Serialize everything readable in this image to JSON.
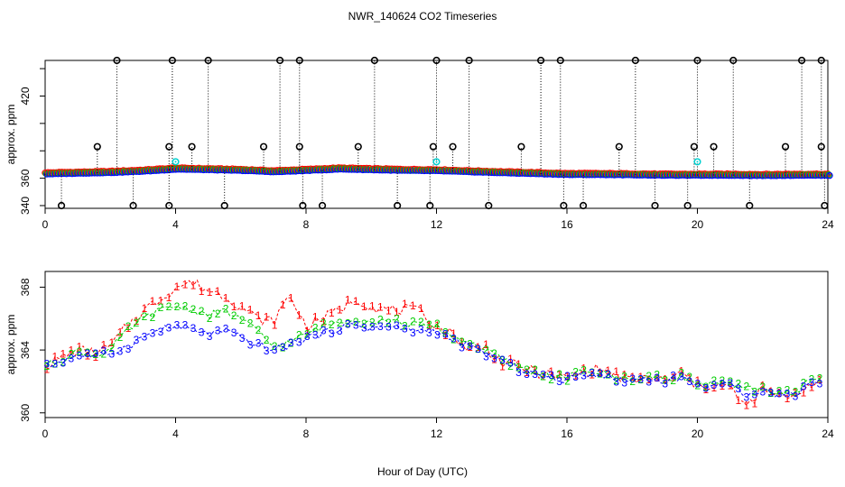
{
  "title": "NWR_140624  CO2 Timeseries",
  "xlabel": "Hour of Day (UTC)",
  "colors": {
    "series1": "#ff0000",
    "series2": "#00cc00",
    "series3": "#0000ff",
    "flagged": "#00d0d0",
    "outlier": "#000000"
  },
  "chart_data": [
    {
      "type": "scatter",
      "name": "overview",
      "ylabel": "approx. ppm",
      "xlim": [
        0,
        24
      ],
      "ylim": [
        338,
        446
      ],
      "xticks": [
        0,
        4,
        8,
        12,
        16,
        20,
        24
      ],
      "yticks": [
        340,
        360,
        420
      ],
      "yticks_minor": [
        380,
        400,
        440
      ],
      "baseline": {
        "x": [
          0,
          1,
          2,
          3,
          4,
          5,
          6,
          7,
          8,
          9,
          10,
          11,
          12,
          13,
          14,
          15,
          16,
          17,
          18,
          19,
          20,
          21,
          22,
          23,
          24
        ],
        "y": [
          363.0,
          363.5,
          364.0,
          365.0,
          366.5,
          366.0,
          365.5,
          364.5,
          365.5,
          366.5,
          366.0,
          365.5,
          365.3,
          364.5,
          363.8,
          363.2,
          362.5,
          362.5,
          362.3,
          362.0,
          362.0,
          362.0,
          361.8,
          362.0,
          362.0
        ]
      },
      "spikes_high": {
        "x": [
          2.2,
          3.9,
          5.0,
          7.2,
          7.8,
          10.1,
          12.0,
          13.0,
          15.2,
          15.8,
          18.1,
          20.0,
          21.1,
          23.2,
          23.8
        ],
        "y": [
          446,
          446,
          446,
          446,
          446,
          446,
          446,
          446,
          446,
          446,
          446,
          446,
          446,
          446,
          446
        ]
      },
      "spikes_mid": {
        "x": [
          1.6,
          3.8,
          4.5,
          6.7,
          7.8,
          9.6,
          11.9,
          12.5,
          14.6,
          17.6,
          19.9,
          20.5,
          22.7,
          23.8
        ],
        "y": [
          383,
          383,
          383,
          383,
          383,
          383,
          383,
          383,
          383,
          383,
          383,
          383,
          383,
          383
        ]
      },
      "spikes_low": {
        "x": [
          0.5,
          2.7,
          3.8,
          5.5,
          7.9,
          8.5,
          10.8,
          11.8,
          13.6,
          15.9,
          16.5,
          18.7,
          19.7,
          21.6,
          23.9
        ],
        "y": [
          340,
          340,
          340,
          340,
          340,
          340,
          340,
          340,
          340,
          340,
          340,
          340,
          340,
          340,
          340
        ]
      },
      "flagged_points": {
        "x": [
          4.0,
          12.0,
          20.0
        ],
        "y": [
          372,
          372,
          372
        ]
      }
    },
    {
      "type": "scatter",
      "name": "detail",
      "ylabel": "approx. ppm",
      "xlim": [
        0,
        24
      ],
      "ylim": [
        359.7,
        369.0
      ],
      "xticks": [
        0,
        4,
        8,
        12,
        16,
        20,
        24
      ],
      "yticks": [
        360,
        364,
        368
      ],
      "series": [
        {
          "name": "1",
          "marker": "1",
          "x": [
            0.0,
            0.5,
            1.0,
            1.5,
            2.0,
            2.5,
            3.0,
            3.5,
            4.0,
            4.5,
            5.0,
            5.5,
            6.0,
            6.5,
            7.0,
            7.5,
            8.0,
            8.5,
            9.0,
            9.5,
            10.0,
            10.5,
            11.0,
            11.5,
            12.0,
            12.5,
            13.0,
            13.5,
            14.0,
            14.5,
            15.0,
            15.5,
            16.0,
            16.5,
            17.0,
            17.5,
            18.0,
            18.5,
            19.0,
            19.5,
            20.0,
            20.5,
            21.0,
            21.5,
            22.0,
            22.5,
            23.0,
            23.5
          ],
          "y": [
            363.0,
            363.5,
            364.0,
            363.8,
            364.2,
            365.5,
            366.5,
            367.2,
            368.0,
            368.3,
            367.8,
            367.5,
            366.8,
            366.0,
            365.8,
            367.5,
            365.5,
            366.0,
            366.5,
            367.3,
            366.8,
            366.5,
            366.6,
            366.4,
            365.5,
            365.0,
            364.0,
            364.2,
            363.2,
            363.0,
            362.6,
            362.4,
            362.2,
            362.6,
            362.8,
            362.4,
            362.0,
            362.3,
            362.0,
            362.5,
            361.7,
            361.8,
            361.6,
            360.3,
            361.5,
            361.0,
            361.2,
            361.9
          ]
        },
        {
          "name": "2",
          "marker": "2",
          "x": [
            0.0,
            0.5,
            1.0,
            1.5,
            2.0,
            2.5,
            3.0,
            3.5,
            4.0,
            4.5,
            5.0,
            5.5,
            6.0,
            6.5,
            7.0,
            7.5,
            8.0,
            8.5,
            9.0,
            9.5,
            10.0,
            10.5,
            11.0,
            11.5,
            12.0,
            12.5,
            13.0,
            13.5,
            14.0,
            14.5,
            15.0,
            15.5,
            16.0,
            16.5,
            17.0,
            17.5,
            18.0,
            18.5,
            19.0,
            19.5,
            20.0,
            20.5,
            21.0,
            21.5,
            22.0,
            22.5,
            23.0,
            23.5
          ],
          "y": [
            363.0,
            363.4,
            363.9,
            363.7,
            364.0,
            365.2,
            366.0,
            366.5,
            366.8,
            366.6,
            366.2,
            366.5,
            366.0,
            365.2,
            364.2,
            364.5,
            365.0,
            365.5,
            365.8,
            366.0,
            365.8,
            365.9,
            365.7,
            365.6,
            365.5,
            364.8,
            364.5,
            364.0,
            363.4,
            362.9,
            362.6,
            362.3,
            362.2,
            362.7,
            362.6,
            362.2,
            362.2,
            362.3,
            362.1,
            362.4,
            361.8,
            361.9,
            361.8,
            361.5,
            361.6,
            361.2,
            361.3,
            362.2
          ]
        },
        {
          "name": "3",
          "marker": "3",
          "x": [
            0.0,
            0.5,
            1.0,
            1.5,
            2.0,
            2.5,
            3.0,
            3.5,
            4.0,
            4.5,
            5.0,
            5.5,
            6.0,
            6.5,
            7.0,
            7.5,
            8.0,
            8.5,
            9.0,
            9.5,
            10.0,
            10.5,
            11.0,
            11.5,
            12.0,
            12.5,
            13.0,
            13.5,
            14.0,
            14.5,
            15.0,
            15.5,
            16.0,
            16.5,
            17.0,
            17.5,
            18.0,
            18.5,
            19.0,
            19.5,
            20.0,
            20.5,
            21.0,
            21.5,
            22.0,
            22.5,
            23.0,
            23.5
          ],
          "y": [
            362.9,
            363.3,
            363.7,
            363.6,
            363.8,
            364.2,
            364.8,
            365.3,
            365.5,
            365.3,
            365.0,
            365.2,
            364.8,
            364.3,
            364.0,
            364.3,
            364.8,
            365.0,
            365.4,
            365.6,
            365.4,
            365.5,
            365.3,
            365.2,
            365.2,
            364.6,
            364.2,
            363.8,
            363.3,
            362.8,
            362.5,
            362.2,
            362.1,
            362.5,
            362.5,
            362.1,
            362.1,
            362.2,
            362.0,
            362.3,
            361.7,
            361.8,
            361.7,
            361.2,
            361.5,
            361.1,
            361.2,
            362.0
          ]
        }
      ]
    }
  ]
}
